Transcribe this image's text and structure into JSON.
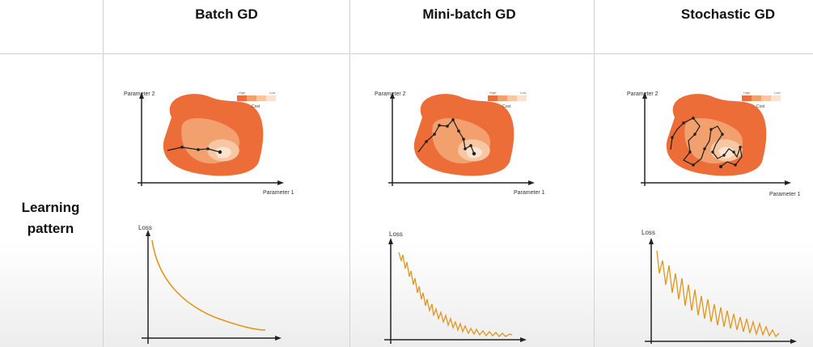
{
  "columns": [
    {
      "title": "Batch GD"
    },
    {
      "title": "Mini-batch GD"
    },
    {
      "title": "Stochastic GD"
    }
  ],
  "row": {
    "line1": "Learning",
    "line2": "pattern"
  },
  "contour": {
    "y_axis_label": "Parameter 2",
    "x_axis_label": "Parameter 1",
    "legend_low": "High",
    "legend_high": "Low",
    "legend_title": "Cost"
  },
  "loss": {
    "y_axis_label": "Loss"
  },
  "colors": {
    "outer": "#ed6d38",
    "mid": "#f2a06e",
    "inner": "#f7c6a2",
    "core": "#fbe3cf",
    "path": "#1e1e1e",
    "loss_line": "#e0961e",
    "grid": "#d2d2d2"
  }
}
